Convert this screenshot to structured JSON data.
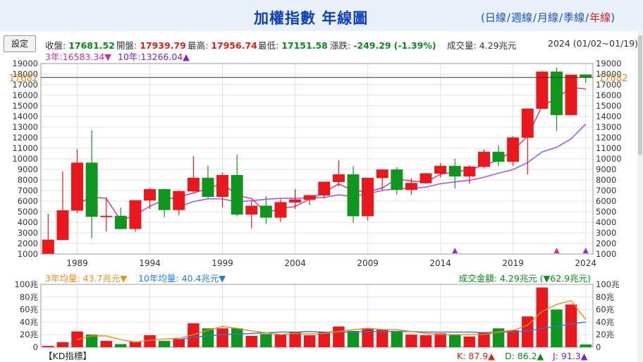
{
  "header": {
    "title": "加權指數 年線圖",
    "periods": [
      {
        "label": "日線",
        "active": false
      },
      {
        "label": "週線",
        "active": false
      },
      {
        "label": "月線",
        "active": false
      },
      {
        "label": "季線",
        "active": false
      },
      {
        "label": "年線",
        "active": true
      }
    ],
    "open_paren": "(",
    "close_paren": ")",
    "separator": "/"
  },
  "toolbar": {
    "settings_label": "設定",
    "close_label": "收盤:",
    "close_value": "17681.52",
    "open_label": "開盤:",
    "open_value": "17939.79",
    "high_label": "最高:",
    "high_value": "17956.74",
    "low_label": "最低:",
    "low_value": "17151.58",
    "change_label": "漲跌:",
    "change_value": "-249.29",
    "change_pct": "(-1.39%)",
    "volume_label": "成交量:",
    "volume_value": "4.29兆元",
    "date_range": "2024 (01/02~01/19)"
  },
  "legend": {
    "ma3_text": "3年:16583.34▼",
    "ma10_text": "10年:13266.04▲",
    "vol_ma3_text": "3年均量: 43.7兆元▼",
    "vol_ma10_text": "10年均量: 40.4兆元▼",
    "turnover_text": "成交金額: 4.29兆元 (▼62.9兆元)",
    "kd_label": "【KD指標】",
    "k_text": "K: 87.9▲",
    "d_text": "D: 86.2▲",
    "j_text": "J: 91.3▲"
  },
  "colors": {
    "up": "#e8181c",
    "down": "#10961e",
    "ma3": "#e0298f",
    "ma10": "#a35cf0",
    "vol_ma3": "#f08a18",
    "vol_ma10": "#1e7fd8",
    "marker": "#c020e0"
  },
  "chart_data": [
    {
      "type": "candlestick",
      "x_tick_labels": [
        "1989",
        "1994",
        "1999",
        "2004",
        "2009",
        "2014",
        "2019",
        "2024"
      ],
      "y_tick_labels": [
        "1000",
        "2000",
        "3000",
        "4000",
        "5000",
        "6000",
        "7000",
        "8000",
        "9000",
        "10000",
        "11000",
        "12000",
        "13000",
        "14000",
        "15000",
        "16000",
        "17000",
        "18000",
        "19000"
      ],
      "ylim": [
        1000,
        19000
      ],
      "current_price_label": "17682",
      "current_price": 17682,
      "grid": true,
      "candles": [
        {
          "year": 1987,
          "open": 1040,
          "high": 4800,
          "low": 1040,
          "close": 2340
        },
        {
          "year": 1988,
          "open": 2340,
          "high": 8800,
          "low": 2340,
          "close": 5120
        },
        {
          "year": 1989,
          "open": 5120,
          "high": 10900,
          "low": 4870,
          "close": 9620
        },
        {
          "year": 1990,
          "open": 9620,
          "high": 12680,
          "low": 2480,
          "close": 4530
        },
        {
          "year": 1991,
          "open": 4530,
          "high": 6370,
          "low": 3140,
          "close": 4600
        },
        {
          "year": 1992,
          "open": 4600,
          "high": 5390,
          "low": 3330,
          "close": 3380
        },
        {
          "year": 1993,
          "open": 3380,
          "high": 6070,
          "low": 3100,
          "close": 6070
        },
        {
          "year": 1994,
          "open": 6070,
          "high": 7230,
          "low": 5250,
          "close": 7120
        },
        {
          "year": 1995,
          "open": 7120,
          "high": 7180,
          "low": 4470,
          "close": 5170
        },
        {
          "year": 1996,
          "open": 5170,
          "high": 7000,
          "low": 4670,
          "close": 6930
        },
        {
          "year": 1997,
          "open": 6930,
          "high": 10250,
          "low": 6820,
          "close": 8190
        },
        {
          "year": 1998,
          "open": 8190,
          "high": 9340,
          "low": 6220,
          "close": 6420
        },
        {
          "year": 1999,
          "open": 6420,
          "high": 8710,
          "low": 5420,
          "close": 8450
        },
        {
          "year": 2000,
          "open": 8450,
          "high": 10390,
          "low": 4550,
          "close": 4740
        },
        {
          "year": 2001,
          "open": 4740,
          "high": 6100,
          "low": 3410,
          "close": 5550
        },
        {
          "year": 2002,
          "open": 5550,
          "high": 6480,
          "low": 3850,
          "close": 4450
        },
        {
          "year": 2003,
          "open": 4450,
          "high": 6180,
          "low": 4040,
          "close": 5890
        },
        {
          "year": 2004,
          "open": 5890,
          "high": 7140,
          "low": 5250,
          "close": 6140
        },
        {
          "year": 2005,
          "open": 6140,
          "high": 6580,
          "low": 5630,
          "close": 6550
        },
        {
          "year": 2006,
          "open": 6550,
          "high": 7820,
          "low": 6230,
          "close": 7820
        },
        {
          "year": 2007,
          "open": 7820,
          "high": 9860,
          "low": 7380,
          "close": 8510
        },
        {
          "year": 2008,
          "open": 8510,
          "high": 9310,
          "low": 3960,
          "close": 4590
        },
        {
          "year": 2009,
          "open": 4590,
          "high": 8190,
          "low": 4160,
          "close": 8190
        },
        {
          "year": 2010,
          "open": 8190,
          "high": 8990,
          "low": 7030,
          "close": 8970
        },
        {
          "year": 2011,
          "open": 8970,
          "high": 9220,
          "low": 6610,
          "close": 7070
        },
        {
          "year": 2012,
          "open": 7070,
          "high": 8170,
          "low": 6600,
          "close": 7700
        },
        {
          "year": 2013,
          "open": 7700,
          "high": 8650,
          "low": 7630,
          "close": 8610
        },
        {
          "year": 2014,
          "open": 8610,
          "high": 9590,
          "low": 8230,
          "close": 9310
        },
        {
          "year": 2015,
          "open": 9310,
          "high": 10010,
          "low": 7200,
          "close": 8340
        },
        {
          "year": 2016,
          "open": 8340,
          "high": 9400,
          "low": 7630,
          "close": 9250
        },
        {
          "year": 2017,
          "open": 9250,
          "high": 10880,
          "low": 9110,
          "close": 10640
        },
        {
          "year": 2018,
          "open": 10640,
          "high": 11270,
          "low": 9320,
          "close": 9730
        },
        {
          "year": 2019,
          "open": 9730,
          "high": 12130,
          "low": 9320,
          "close": 12000
        },
        {
          "year": 2020,
          "open": 12000,
          "high": 14760,
          "low": 8520,
          "close": 14730
        },
        {
          "year": 2021,
          "open": 14730,
          "high": 18290,
          "low": 14720,
          "close": 18220
        },
        {
          "year": 2022,
          "open": 18220,
          "high": 18620,
          "low": 12630,
          "close": 14140
        },
        {
          "year": 2023,
          "open": 14140,
          "high": 17950,
          "low": 14150,
          "close": 17930
        },
        {
          "year": 2024,
          "open": 17940,
          "high": 17957,
          "low": 17152,
          "close": 17682
        }
      ],
      "ma3": [
        null,
        null,
        5690,
        6420,
        6250,
        4170,
        4680,
        5520,
        6120,
        6410,
        6760,
        7180,
        7690,
        6540,
        6250,
        4910,
        5300,
        5490,
        6190,
        6840,
        7630,
        6980,
        6900,
        7250,
        8080,
        7910,
        7790,
        8540,
        8750,
        8970,
        9410,
        9870,
        10790,
        12150,
        14980,
        15700,
        16760,
        16580
      ],
      "ma10": [
        null,
        null,
        null,
        null,
        null,
        null,
        null,
        null,
        null,
        5450,
        5960,
        6220,
        6200,
        5940,
        6040,
        6180,
        6260,
        6270,
        6310,
        6350,
        6590,
        6430,
        6690,
        7000,
        7180,
        7190,
        7320,
        7640,
        7820,
        7960,
        8260,
        8640,
        8980,
        9640,
        10640,
        11080,
        11890,
        13270
      ]
    },
    {
      "type": "bar",
      "title": "",
      "y_tick_labels": [
        "0",
        "20兆",
        "40兆",
        "60兆",
        "80兆",
        "100兆"
      ],
      "ylim": [
        0,
        100
      ],
      "unit": "兆元",
      "years": [
        1987,
        1988,
        1989,
        1990,
        1991,
        1992,
        1993,
        1994,
        1995,
        1996,
        1997,
        1998,
        1999,
        2000,
        2001,
        2002,
        2003,
        2004,
        2005,
        2006,
        2007,
        2008,
        2009,
        2010,
        2011,
        2012,
        2013,
        2014,
        2015,
        2016,
        2017,
        2018,
        2019,
        2020,
        2021,
        2022,
        2023,
        2024
      ],
      "volume": [
        2,
        8,
        25,
        20,
        10,
        5,
        9,
        19,
        10,
        13,
        38,
        30,
        30,
        30,
        18,
        21,
        20,
        24,
        19,
        24,
        33,
        26,
        30,
        28,
        26,
        20,
        19,
        22,
        20,
        17,
        24,
        30,
        27,
        49,
        95,
        60,
        68,
        4.29
      ],
      "vol_up": [
        true,
        true,
        true,
        false,
        true,
        false,
        true,
        true,
        false,
        true,
        true,
        false,
        true,
        false,
        true,
        false,
        true,
        true,
        true,
        true,
        true,
        false,
        true,
        true,
        false,
        true,
        true,
        true,
        false,
        true,
        true,
        false,
        true,
        true,
        true,
        false,
        true,
        false
      ],
      "vol_ma3": [
        null,
        null,
        12,
        18,
        18,
        12,
        8,
        11,
        13,
        14,
        20,
        27,
        33,
        30,
        26,
        23,
        20,
        22,
        21,
        22,
        25,
        28,
        30,
        28,
        28,
        25,
        22,
        20,
        20,
        20,
        20,
        24,
        27,
        35,
        57,
        68,
        74,
        44
      ],
      "vol_ma10": [
        null,
        null,
        null,
        null,
        null,
        null,
        null,
        null,
        null,
        12,
        16,
        18,
        20,
        21,
        22,
        23,
        24,
        24,
        25,
        24,
        24,
        24,
        25,
        25,
        25,
        25,
        24,
        24,
        24,
        24,
        23,
        24,
        24,
        26,
        30,
        33,
        37,
        40
      ]
    }
  ]
}
